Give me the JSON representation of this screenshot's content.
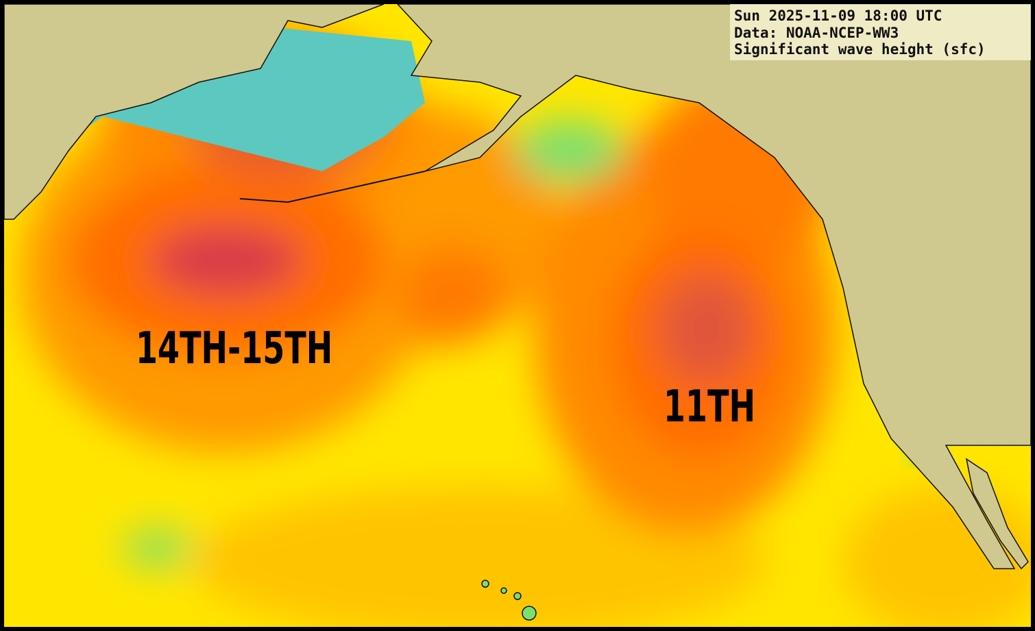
{
  "header": {
    "lines": [
      "Sun 2025-11-09 18:00 UTC",
      "Data: NOAA-NCEP-WW3",
      "Significant wave height (sfc)"
    ]
  },
  "annotations": [
    "14TH-15TH",
    "11TH"
  ]
}
